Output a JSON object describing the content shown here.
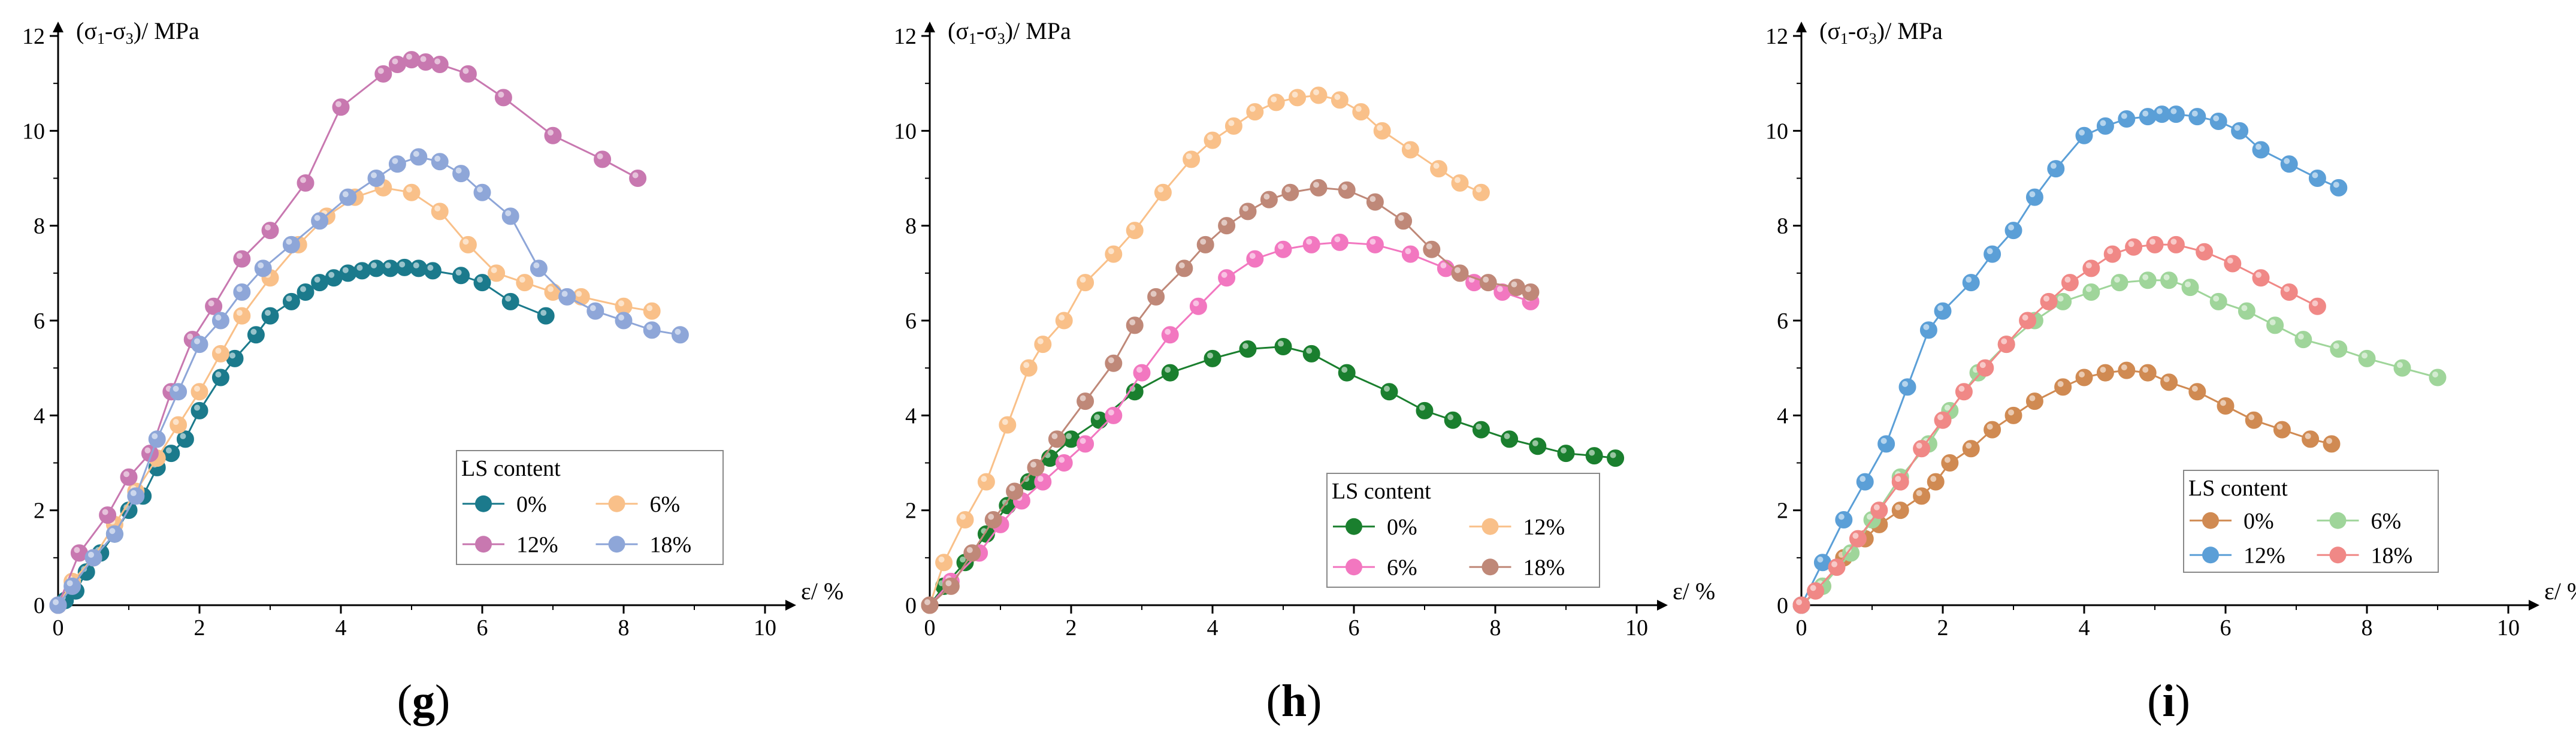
{
  "chart_data": [
    {
      "type": "line",
      "panel_label": "g",
      "panel_label_open": "(",
      "panel_label_close": ")",
      "ylabel_prefix": "(σ",
      "ylabel_sub1": "1",
      "ylabel_mid": "-σ",
      "ylabel_sub2": "3",
      "ylabel_suffix": ")/ MPa",
      "xlabel": "ε/ %",
      "xlim": [
        0,
        10
      ],
      "ylim": [
        0,
        12
      ],
      "xticks": [
        0,
        2,
        4,
        6,
        8,
        10
      ],
      "yticks": [
        0,
        2,
        4,
        6,
        8,
        10,
        12
      ],
      "legend_title": "LS content",
      "legend_order": [
        0,
        1,
        2,
        3
      ],
      "series": [
        {
          "name": "0%",
          "color": "#1b7a8c",
          "x": [
            0,
            0.1,
            0.25,
            0.4,
            0.6,
            0.8,
            1.0,
            1.2,
            1.4,
            1.6,
            1.8,
            2.0,
            2.3,
            2.5,
            2.8,
            3.0,
            3.3,
            3.5,
            3.7,
            3.9,
            4.1,
            4.3,
            4.5,
            4.7,
            4.9,
            5.1,
            5.3,
            5.7,
            6.0,
            6.4,
            6.9
          ],
          "y": [
            0,
            0.1,
            0.3,
            0.7,
            1.1,
            1.5,
            2.0,
            2.3,
            2.9,
            3.2,
            3.5,
            4.1,
            4.8,
            5.2,
            5.7,
            6.1,
            6.4,
            6.6,
            6.8,
            6.9,
            7.0,
            7.05,
            7.1,
            7.1,
            7.12,
            7.1,
            7.05,
            6.95,
            6.8,
            6.4,
            6.1
          ]
        },
        {
          "name": "6%",
          "color": "#f9c089",
          "x": [
            0,
            0.2,
            0.5,
            0.8,
            1.1,
            1.4,
            1.7,
            2.0,
            2.3,
            2.6,
            3.0,
            3.4,
            3.8,
            4.2,
            4.6,
            5.0,
            5.4,
            5.8,
            6.2,
            6.6,
            7.0,
            7.4,
            8.0,
            8.4
          ],
          "y": [
            0,
            0.5,
            1.0,
            1.7,
            2.4,
            3.1,
            3.8,
            4.5,
            5.3,
            6.1,
            6.9,
            7.6,
            8.2,
            8.6,
            8.8,
            8.7,
            8.3,
            7.6,
            7.0,
            6.8,
            6.6,
            6.5,
            6.3,
            6.2
          ]
        },
        {
          "name": "12%",
          "color": "#c878b0",
          "x": [
            0,
            0.3,
            0.7,
            1.0,
            1.3,
            1.6,
            1.9,
            2.2,
            2.6,
            3.0,
            3.5,
            4.0,
            4.6,
            4.8,
            5.0,
            5.2,
            5.4,
            5.8,
            6.3,
            7.0,
            7.7,
            8.2
          ],
          "y": [
            0,
            1.1,
            1.9,
            2.7,
            3.2,
            4.5,
            5.6,
            6.3,
            7.3,
            7.9,
            8.9,
            10.5,
            11.2,
            11.4,
            11.5,
            11.45,
            11.4,
            11.2,
            10.7,
            9.9,
            9.4,
            9.0
          ]
        },
        {
          "name": "18%",
          "color": "#8ea6d8",
          "x": [
            0,
            0.2,
            0.5,
            0.8,
            1.1,
            1.4,
            1.7,
            2.0,
            2.3,
            2.6,
            2.9,
            3.3,
            3.7,
            4.1,
            4.5,
            4.8,
            5.1,
            5.4,
            5.7,
            6.0,
            6.4,
            6.8,
            7.2,
            7.6,
            8.0,
            8.4,
            8.8
          ],
          "y": [
            0,
            0.4,
            1.0,
            1.5,
            2.3,
            3.5,
            4.5,
            5.5,
            6.0,
            6.6,
            7.1,
            7.6,
            8.1,
            8.6,
            9.0,
            9.3,
            9.45,
            9.35,
            9.1,
            8.7,
            8.2,
            7.1,
            6.5,
            6.2,
            6.0,
            5.8,
            5.7
          ]
        }
      ]
    },
    {
      "type": "line",
      "panel_label": "h",
      "panel_label_open": "(",
      "panel_label_close": ")",
      "ylabel_prefix": "(σ",
      "ylabel_sub1": "1",
      "ylabel_mid": "-σ",
      "ylabel_sub2": "3",
      "ylabel_suffix": ")/ MPa",
      "xlabel": "ε/ %",
      "xlim": [
        0,
        10
      ],
      "ylim": [
        0,
        12
      ],
      "xticks": [
        0,
        2,
        4,
        6,
        8,
        10
      ],
      "yticks": [
        0,
        2,
        4,
        6,
        8,
        10,
        12
      ],
      "legend_title": "LS content",
      "legend_order": [
        0,
        2,
        1,
        3
      ],
      "series": [
        {
          "name": "0%",
          "color": "#1a7f2e",
          "x": [
            0,
            0.2,
            0.5,
            0.8,
            1.1,
            1.4,
            1.7,
            2.0,
            2.4,
            2.9,
            3.4,
            4.0,
            4.5,
            5.0,
            5.4,
            5.9,
            6.5,
            7.0,
            7.4,
            7.8,
            8.2,
            8.6,
            9.0,
            9.4,
            9.7
          ],
          "y": [
            0,
            0.4,
            0.9,
            1.5,
            2.1,
            2.6,
            3.1,
            3.5,
            3.9,
            4.5,
            4.9,
            5.2,
            5.4,
            5.45,
            5.3,
            4.9,
            4.5,
            4.1,
            3.9,
            3.7,
            3.5,
            3.35,
            3.2,
            3.15,
            3.1
          ]
        },
        {
          "name": "6%",
          "color": "#f277c0",
          "x": [
            0,
            0.3,
            0.7,
            1.0,
            1.3,
            1.6,
            1.9,
            2.2,
            2.6,
            3.0,
            3.4,
            3.8,
            4.2,
            4.6,
            5.0,
            5.4,
            5.8,
            6.3,
            6.8,
            7.3,
            7.7,
            8.1,
            8.5
          ],
          "y": [
            0,
            0.5,
            1.1,
            1.7,
            2.2,
            2.6,
            3.0,
            3.4,
            4.0,
            4.9,
            5.7,
            6.3,
            6.9,
            7.3,
            7.5,
            7.6,
            7.65,
            7.6,
            7.4,
            7.1,
            6.8,
            6.6,
            6.4
          ]
        },
        {
          "name": "12%",
          "color": "#f9c089",
          "x": [
            0,
            0.2,
            0.5,
            0.8,
            1.1,
            1.4,
            1.6,
            1.9,
            2.2,
            2.6,
            2.9,
            3.3,
            3.7,
            4.0,
            4.3,
            4.6,
            4.9,
            5.2,
            5.5,
            5.8,
            6.1,
            6.4,
            6.8,
            7.2,
            7.5,
            7.8
          ],
          "y": [
            0,
            0.9,
            1.8,
            2.6,
            3.8,
            5.0,
            5.5,
            6.0,
            6.8,
            7.4,
            7.9,
            8.7,
            9.4,
            9.8,
            10.1,
            10.4,
            10.6,
            10.7,
            10.75,
            10.65,
            10.4,
            10.0,
            9.6,
            9.2,
            8.9,
            8.7
          ]
        },
        {
          "name": "18%",
          "color": "#bf8878",
          "x": [
            0,
            0.3,
            0.6,
            0.9,
            1.2,
            1.5,
            1.8,
            2.2,
            2.6,
            2.9,
            3.2,
            3.6,
            3.9,
            4.2,
            4.5,
            4.8,
            5.1,
            5.5,
            5.9,
            6.3,
            6.7,
            7.1,
            7.5,
            7.9,
            8.3,
            8.5
          ],
          "y": [
            0,
            0.4,
            1.1,
            1.8,
            2.4,
            2.9,
            3.5,
            4.3,
            5.1,
            5.9,
            6.5,
            7.1,
            7.6,
            8.0,
            8.3,
            8.55,
            8.7,
            8.8,
            8.75,
            8.5,
            8.1,
            7.5,
            7.0,
            6.8,
            6.7,
            6.6
          ]
        }
      ]
    },
    {
      "type": "line",
      "panel_label": "i",
      "panel_label_open": "(",
      "panel_label_close": ")",
      "ylabel_prefix": "(σ",
      "ylabel_sub1": "1",
      "ylabel_mid": "-σ",
      "ylabel_sub2": "3",
      "ylabel_suffix": ")/ MPa",
      "xlabel": "ε/ %",
      "xlim": [
        0,
        10
      ],
      "ylim": [
        0,
        12
      ],
      "xticks": [
        0,
        2,
        4,
        6,
        8,
        10
      ],
      "yticks": [
        0,
        2,
        4,
        6,
        8,
        10,
        12
      ],
      "legend_title": "LS content",
      "legend_order": [
        0,
        1,
        2,
        3
      ],
      "series": [
        {
          "name": "0%",
          "color": "#d08a52",
          "x": [
            0,
            0.3,
            0.6,
            0.9,
            1.1,
            1.4,
            1.7,
            1.9,
            2.1,
            2.4,
            2.7,
            3.0,
            3.3,
            3.7,
            4.0,
            4.3,
            4.6,
            4.9,
            5.2,
            5.6,
            6.0,
            6.4,
            6.8,
            7.2,
            7.5
          ],
          "y": [
            0,
            0.4,
            1.0,
            1.4,
            1.7,
            2.0,
            2.3,
            2.6,
            3.0,
            3.3,
            3.7,
            4.0,
            4.3,
            4.6,
            4.8,
            4.9,
            4.95,
            4.9,
            4.7,
            4.5,
            4.2,
            3.9,
            3.7,
            3.5,
            3.4
          ]
        },
        {
          "name": "6%",
          "color": "#9fd59a",
          "x": [
            0,
            0.3,
            0.7,
            1.0,
            1.4,
            1.8,
            2.1,
            2.5,
            2.9,
            3.3,
            3.7,
            4.1,
            4.5,
            4.9,
            5.2,
            5.5,
            5.9,
            6.3,
            6.7,
            7.1,
            7.6,
            8.0,
            8.5,
            9.0
          ],
          "y": [
            0,
            0.4,
            1.1,
            1.8,
            2.7,
            3.4,
            4.1,
            4.9,
            5.5,
            6.0,
            6.4,
            6.6,
            6.8,
            6.85,
            6.85,
            6.7,
            6.4,
            6.2,
            5.9,
            5.6,
            5.4,
            5.2,
            5.0,
            4.8
          ]
        },
        {
          "name": "12%",
          "color": "#5b9fd7",
          "x": [
            0,
            0.3,
            0.6,
            0.9,
            1.2,
            1.5,
            1.8,
            2.0,
            2.4,
            2.7,
            3.0,
            3.3,
            3.6,
            4.0,
            4.3,
            4.6,
            4.9,
            5.1,
            5.3,
            5.6,
            5.9,
            6.2,
            6.5,
            6.9,
            7.3,
            7.6
          ],
          "y": [
            0,
            0.9,
            1.8,
            2.6,
            3.4,
            4.6,
            5.8,
            6.2,
            6.8,
            7.4,
            7.9,
            8.6,
            9.2,
            9.9,
            10.1,
            10.25,
            10.3,
            10.35,
            10.35,
            10.3,
            10.2,
            10.0,
            9.6,
            9.3,
            9.0,
            8.8
          ]
        },
        {
          "name": "18%",
          "color": "#f08886",
          "x": [
            0,
            0.2,
            0.5,
            0.8,
            1.1,
            1.4,
            1.7,
            2.0,
            2.3,
            2.6,
            2.9,
            3.2,
            3.5,
            3.8,
            4.1,
            4.4,
            4.7,
            5.0,
            5.3,
            5.7,
            6.1,
            6.5,
            6.9,
            7.3
          ],
          "y": [
            0,
            0.3,
            0.8,
            1.4,
            2.0,
            2.6,
            3.3,
            3.9,
            4.5,
            5.0,
            5.5,
            6.0,
            6.4,
            6.8,
            7.1,
            7.4,
            7.55,
            7.6,
            7.6,
            7.45,
            7.2,
            6.9,
            6.6,
            6.3
          ]
        }
      ]
    }
  ]
}
